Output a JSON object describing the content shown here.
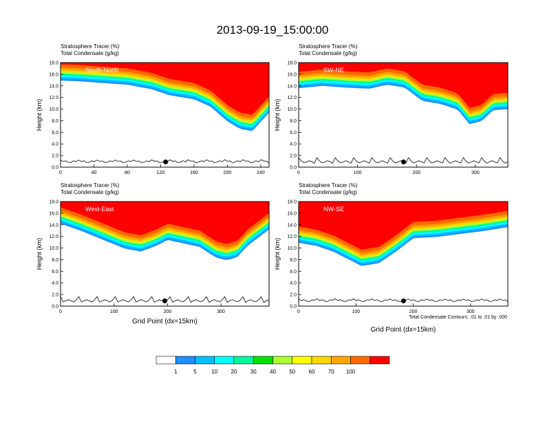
{
  "title": "2013-09-19_15:00:00",
  "colors": {
    "bands": [
      "#ffffff",
      "#1e90ff",
      "#00bfff",
      "#00ffff",
      "#00fa9a",
      "#00e000",
      "#adff2f",
      "#ffff00",
      "#ffd700",
      "#ffa500",
      "#ff6a00",
      "#ff0000"
    ]
  },
  "colorbar": {
    "labels": [
      "1",
      "5",
      "10",
      "20",
      "30",
      "40",
      "50",
      "60",
      "70",
      "100"
    ]
  },
  "contour_note": "Total Condensate Contours: .01 to .01 by .000",
  "chart_data": [
    {
      "type": "heatmap",
      "header1": "Stratosphere Tracer   (%)",
      "header2": "Total Condensate   (g/kg)",
      "section": "South-North",
      "xlabel": "",
      "ylabel": "Height (km)",
      "xlim": [
        0,
        250
      ],
      "ylim": [
        0,
        18
      ],
      "xticks": [
        "0",
        "40",
        "80",
        "120",
        "160",
        "200",
        "240"
      ],
      "yticks": [
        "0.0",
        "2.0",
        "4.0",
        "6.0",
        "8.0",
        "10.0",
        "12.0",
        "14.0",
        "16.0",
        "18.0"
      ],
      "marker_x": 126,
      "tracer_base_km": {
        "x": [
          0,
          20,
          40,
          80,
          110,
          130,
          160,
          180,
          200,
          215,
          230,
          250
        ],
        "y": [
          15.5,
          15.4,
          15.2,
          14.8,
          14.0,
          13.0,
          12.3,
          11.0,
          8.5,
          7.2,
          6.8,
          10.0
        ]
      }
    },
    {
      "type": "heatmap",
      "header1": "Stratosphere Tracer   (%)",
      "header2": "Total Condensate   (g/kg)",
      "section": "SW-NE",
      "xlabel": "",
      "ylabel": "Height (km)",
      "xlim": [
        0,
        355
      ],
      "ylim": [
        0,
        18
      ],
      "xticks": [
        "0",
        "100",
        "200",
        "300"
      ],
      "yticks": [
        "0.0",
        "2.0",
        "4.0",
        "6.0",
        "8.0",
        "10.0",
        "12.0",
        "14.0",
        "16.0",
        "18.0"
      ],
      "marker_x": 178,
      "tracer_base_km": {
        "x": [
          0,
          40,
          80,
          120,
          150,
          180,
          210,
          240,
          270,
          290,
          310,
          330,
          355
        ],
        "y": [
          14.2,
          14.6,
          14.3,
          14.1,
          14.8,
          14.3,
          12.0,
          11.5,
          10.5,
          8.0,
          8.5,
          10.4,
          10.6
        ]
      }
    },
    {
      "type": "heatmap",
      "header1": "Stratosphere Tracer   (%)",
      "header2": "Total Condensate   (g/kg)",
      "section": "West-East",
      "xlabel": "Grid Point (dx=15km)",
      "ylabel": "Height (km)",
      "xlim": [
        0,
        390
      ],
      "ylim": [
        0,
        18
      ],
      "xticks": [
        "0",
        "100",
        "200",
        "300"
      ],
      "yticks": [
        "0.0",
        "2.0",
        "4.0",
        "6.0",
        "8.0",
        "10.0",
        "12.0",
        "14.0",
        "16.0",
        "18.0"
      ],
      "marker_x": 195,
      "tracer_base_km": {
        "x": [
          0,
          40,
          80,
          120,
          150,
          180,
          200,
          240,
          260,
          290,
          310,
          330,
          350,
          390
        ],
        "y": [
          14.8,
          13.5,
          12.0,
          10.5,
          10.0,
          11.0,
          12.0,
          11.2,
          10.8,
          9.0,
          8.5,
          9.0,
          11.0,
          13.8
        ]
      }
    },
    {
      "type": "heatmap",
      "header1": "Stratosphere Tracer   (%)",
      "header2": "Total Condensate   (g/kg)",
      "section": "NW-SE",
      "xlabel": "Grid Point (dx=15km)",
      "ylabel": "Height (km)",
      "xlim": [
        0,
        365
      ],
      "ylim": [
        0,
        18
      ],
      "xticks": [
        "0",
        "100",
        "200",
        "300"
      ],
      "yticks": [
        "0.0",
        "2.0",
        "4.0",
        "6.0",
        "8.0",
        "10.0",
        "12.0",
        "14.0",
        "16.0",
        "18.0"
      ],
      "marker_x": 183,
      "tracer_base_km": {
        "x": [
          0,
          30,
          60,
          90,
          110,
          140,
          170,
          200,
          240,
          280,
          320,
          365
        ],
        "y": [
          11.5,
          11.0,
          10.0,
          8.5,
          7.5,
          8.0,
          10.0,
          12.3,
          12.5,
          13.0,
          13.5,
          14.2
        ]
      }
    }
  ]
}
